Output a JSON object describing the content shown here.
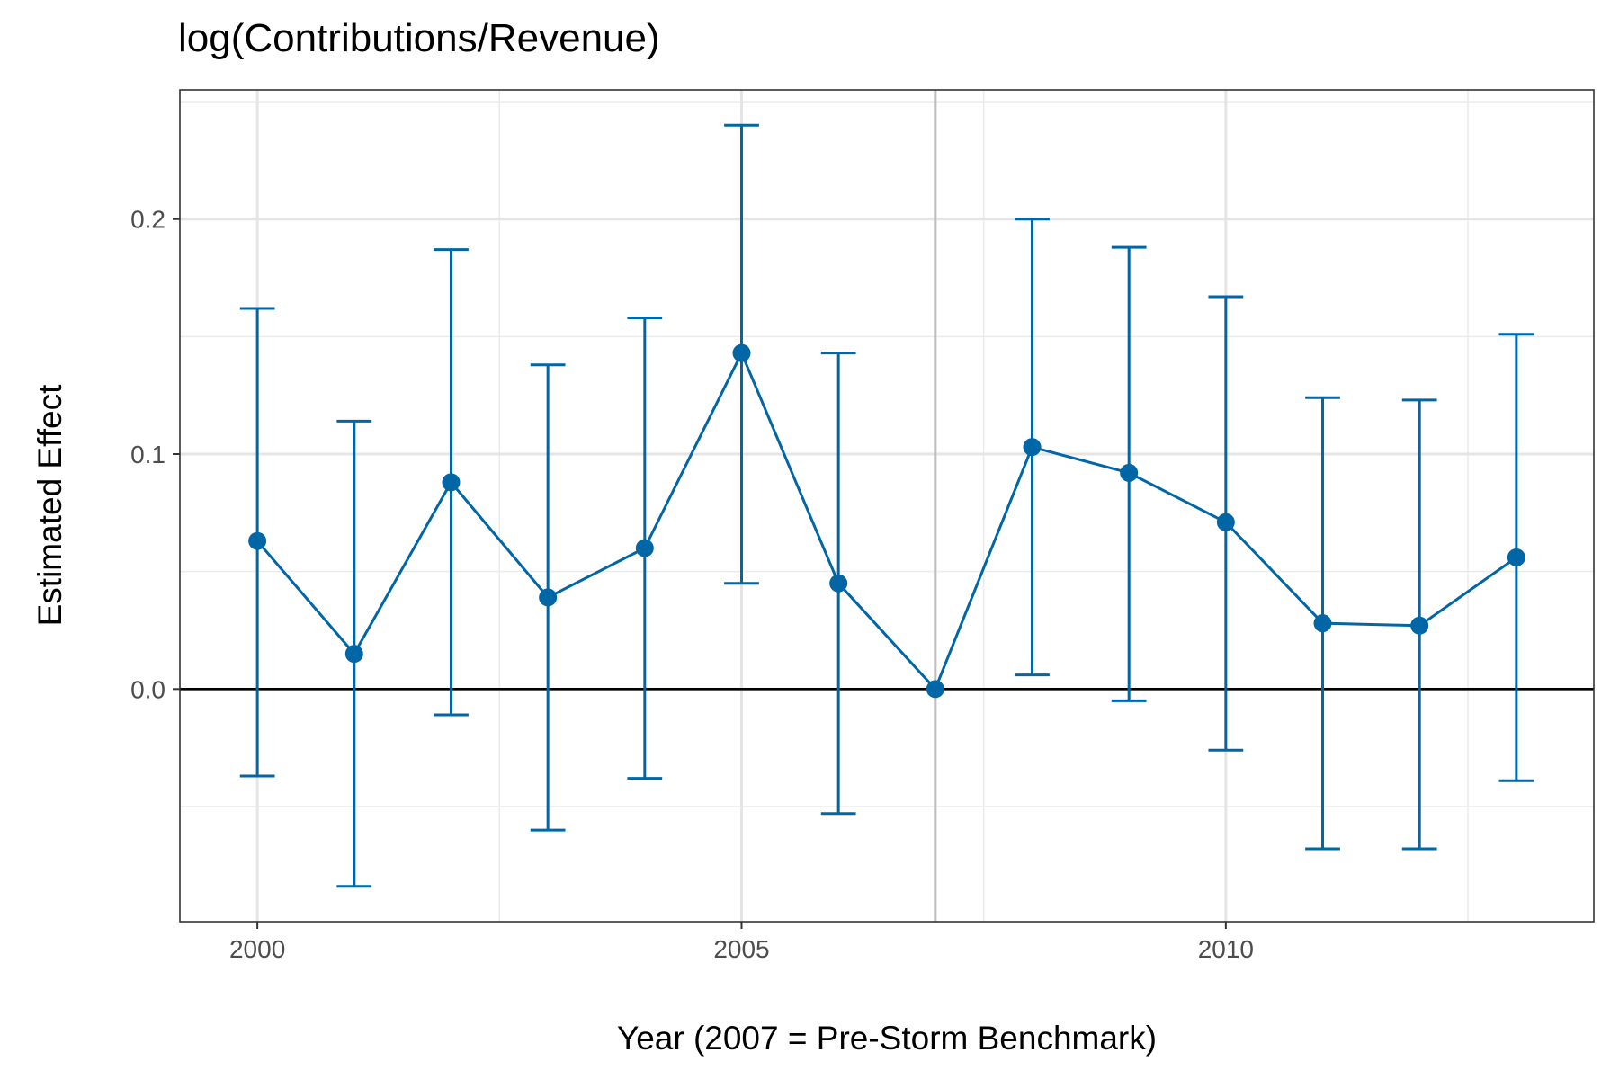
{
  "chart_data": {
    "type": "line",
    "title": "log(Contributions/Revenue)",
    "xlabel": "Year (2007 = Pre-Storm Benchmark)",
    "ylabel": "Estimated Effect",
    "xlim": [
      1999.2,
      2013.8
    ],
    "ylim": [
      -0.099,
      0.255
    ],
    "x_ticks": [
      2000,
      2005,
      2010
    ],
    "x_tick_labels": [
      "2000",
      "2005",
      "2010"
    ],
    "y_ticks": [
      0.0,
      0.1,
      0.2
    ],
    "y_tick_labels": [
      "0.0",
      "0.1",
      "0.2"
    ],
    "grid": true,
    "reference_hline": 0,
    "reference_vline": 2007,
    "series": [
      {
        "color": "#0066a6",
        "x": [
          2000,
          2001,
          2002,
          2003,
          2004,
          2005,
          2006,
          2007,
          2008,
          2009,
          2010,
          2011,
          2012,
          2013
        ],
        "y": [
          0.063,
          0.015,
          0.088,
          0.039,
          0.06,
          0.143,
          0.045,
          0.0,
          0.103,
          0.092,
          0.071,
          0.028,
          0.027,
          0.056
        ],
        "lower": [
          -0.037,
          -0.084,
          -0.011,
          -0.06,
          -0.038,
          0.045,
          -0.053,
          0.0,
          0.006,
          -0.005,
          -0.026,
          -0.068,
          -0.068,
          -0.039
        ],
        "upper": [
          0.162,
          0.114,
          0.187,
          0.138,
          0.158,
          0.24,
          0.143,
          0.0,
          0.2,
          0.188,
          0.167,
          0.124,
          0.123,
          0.151
        ]
      }
    ]
  }
}
